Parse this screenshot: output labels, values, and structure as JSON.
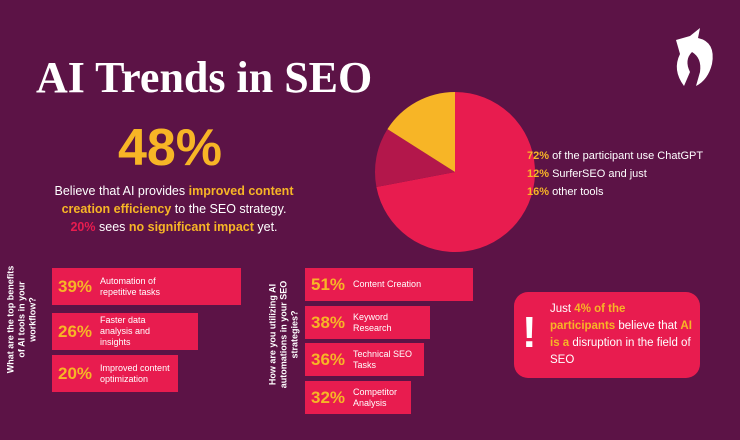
{
  "title": "AI Trends in SEO",
  "headline": "48%",
  "statement": {
    "part1": "Believe that AI provides ",
    "highlight1": "improved content creation efficiency",
    "part2": " to the SEO strategy.",
    "stat": "20%",
    "part3": " sees ",
    "highlight2": "no significant impact",
    "part4": " yet."
  },
  "pie": {
    "slices": [
      {
        "value": 72,
        "label": "72%",
        "text": " of the participant use ChatGPT",
        "color": "#e81c4f"
      },
      {
        "value": 12,
        "label": "12%",
        "text": " SurferSEO and just",
        "color": "#b3174b"
      },
      {
        "value": 16,
        "label": "16%",
        "text": " other tools",
        "color": "#f7b526"
      }
    ]
  },
  "benefits": {
    "question": "What are the top benefits of AI tools in your workflow?",
    "bars": [
      {
        "value": 39,
        "label": "39%",
        "text": "Automation of repetitive tasks"
      },
      {
        "value": 26,
        "label": "26%",
        "text": "Faster data analysis and insights"
      },
      {
        "value": 20,
        "label": "20%",
        "text": "Improved content optimization"
      }
    ]
  },
  "automations": {
    "question": "How are you utilizing AI automations in your SEO strategies?",
    "bars": [
      {
        "value": 51,
        "label": "51%",
        "text": "Content Creation"
      },
      {
        "value": 38,
        "label": "38%",
        "text": "Keyword Research"
      },
      {
        "value": 36,
        "label": "36%",
        "text": "Technical SEO Tasks"
      },
      {
        "value": 32,
        "label": "32%",
        "text": "Competitor Analysis"
      }
    ]
  },
  "callout": {
    "icon": "!",
    "part1": "Just ",
    "highlight1": "4% of the participants",
    "part2": " believe that ",
    "highlight2": "AI is a",
    "part3": " disruption in the field of SEO"
  }
}
